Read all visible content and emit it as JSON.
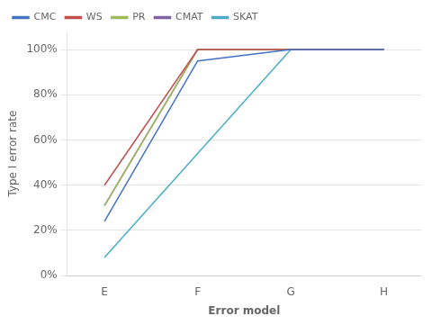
{
  "chart_data": {
    "type": "line",
    "xlabel": "Error model",
    "ylabel": "Type I error rate",
    "x": [
      0,
      1,
      2,
      3
    ],
    "xlim": [
      -0.4,
      3.4
    ],
    "xticks": [
      {
        "value": 0,
        "label": "E"
      },
      {
        "value": 1,
        "label": "F"
      },
      {
        "value": 2,
        "label": "G"
      },
      {
        "value": 3,
        "label": "H"
      }
    ],
    "ylim": [
      0.0,
      1.08
    ],
    "yticks": [
      {
        "value": 0.0,
        "label": "0%"
      },
      {
        "value": 0.2,
        "label": "20%"
      },
      {
        "value": 0.4,
        "label": "40%"
      },
      {
        "value": 0.6,
        "label": "60%"
      },
      {
        "value": 0.8,
        "label": "80%"
      },
      {
        "value": 1.0,
        "label": "100%"
      }
    ],
    "grid": "y",
    "legend": "upper left",
    "series": [
      {
        "name": "CMC",
        "color": "#4472C4",
        "values": [
          0.24,
          0.95,
          1.0,
          1.0
        ]
      },
      {
        "name": "WS",
        "color": "#C0504D",
        "values": [
          0.4,
          1.0,
          1.0,
          1.0
        ]
      },
      {
        "name": "PR",
        "color": "#9BBB59",
        "values": [
          0.31,
          1.0,
          1.0,
          1.0
        ]
      },
      {
        "name": "CMAT",
        "color": "#8064A2",
        "values": [
          0.31,
          1.0,
          1.0,
          1.0
        ]
      },
      {
        "name": "SKAT",
        "color": "#4BACC6",
        "x": [
          0,
          2,
          3
        ],
        "values": [
          0.08,
          1.0,
          1.0
        ]
      }
    ]
  }
}
